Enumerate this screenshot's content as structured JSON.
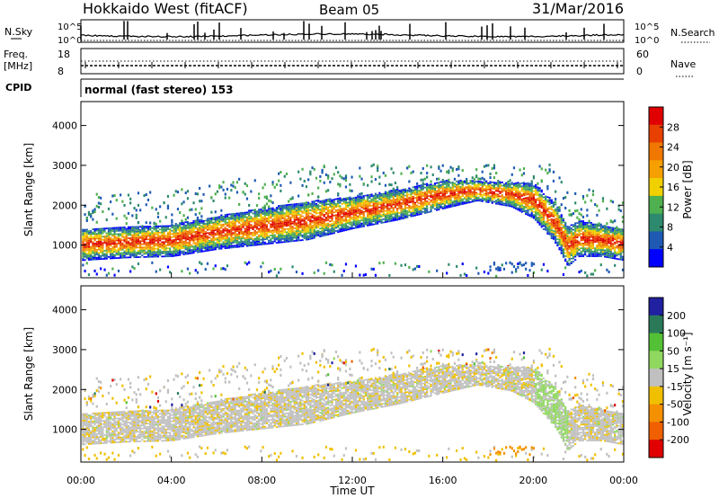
{
  "header": {
    "station": "Hokkaido West (fitACF)",
    "beam": "Beam 05",
    "date": "31/Mar/2016"
  },
  "top_panels": {
    "nsky_label": "N.Sky",
    "nsky_ticks": [
      "10^5",
      "10^0"
    ],
    "nsearch_label": "N.Search",
    "nsearch_ticks": [
      "10^5",
      "10^0"
    ],
    "freq_label": "Freq.",
    "freq_unit": "[MHz]",
    "freq_ticks": [
      "18",
      "8"
    ],
    "nave_label": "Nave",
    "nave_ticks": [
      "60",
      "0"
    ],
    "cpid_label": "CPID",
    "cpid_value": "normal (fast stereo) 153"
  },
  "chart_data": [
    {
      "type": "heatmap",
      "name": "power",
      "xlabel": "",
      "ylabel": "Slant Range [km]",
      "ylim": [
        180,
        4600
      ],
      "yticks": [
        "1000",
        "2000",
        "3000",
        "4000"
      ],
      "colorbar_label": "Power [dB]",
      "colorbar_ticks": [
        "4",
        "8",
        "12",
        "16",
        "20",
        "24",
        "28"
      ],
      "colors": [
        "#0000ff",
        "#1e5ab4",
        "#2e8a6e",
        "#4eb04e",
        "#f0d000",
        "#f5a000",
        "#f07800",
        "#e84000",
        "#e00000"
      ],
      "echo_band": {
        "x_hours": [
          0,
          2,
          4,
          6,
          8,
          10,
          12,
          14,
          16,
          17.5,
          19,
          20,
          21,
          21.5,
          22,
          23,
          24
        ],
        "center_km": [
          1000,
          1050,
          1100,
          1300,
          1450,
          1600,
          1800,
          2000,
          2250,
          2350,
          2250,
          2100,
          1500,
          950,
          1150,
          1100,
          1000
        ],
        "thickness_km": [
          400,
          380,
          400,
          420,
          450,
          480,
          400,
          380,
          350,
          250,
          300,
          450,
          500,
          500,
          450,
          400,
          400
        ]
      }
    },
    {
      "type": "heatmap",
      "name": "velocity",
      "xlabel": "Time UT",
      "ylabel": "Slant Range [km]",
      "xlim": [
        0,
        24
      ],
      "xticks": [
        "00:00",
        "04:00",
        "08:00",
        "12:00",
        "16:00",
        "20:00",
        "00:00"
      ],
      "ylim": [
        180,
        4600
      ],
      "yticks": [
        "1000",
        "2000",
        "3000",
        "4000"
      ],
      "colorbar_label": "Velocity [m s⁻¹]",
      "colorbar_ticks": [
        "200",
        "100",
        "50",
        "15",
        "-15",
        "-50",
        "-100",
        "-200"
      ],
      "colors": [
        "#2020a0",
        "#2a7a5a",
        "#54c036",
        "#90d860",
        "#c0c0c0",
        "#f0c000",
        "#f59000",
        "#f06000",
        "#e00000"
      ]
    }
  ]
}
